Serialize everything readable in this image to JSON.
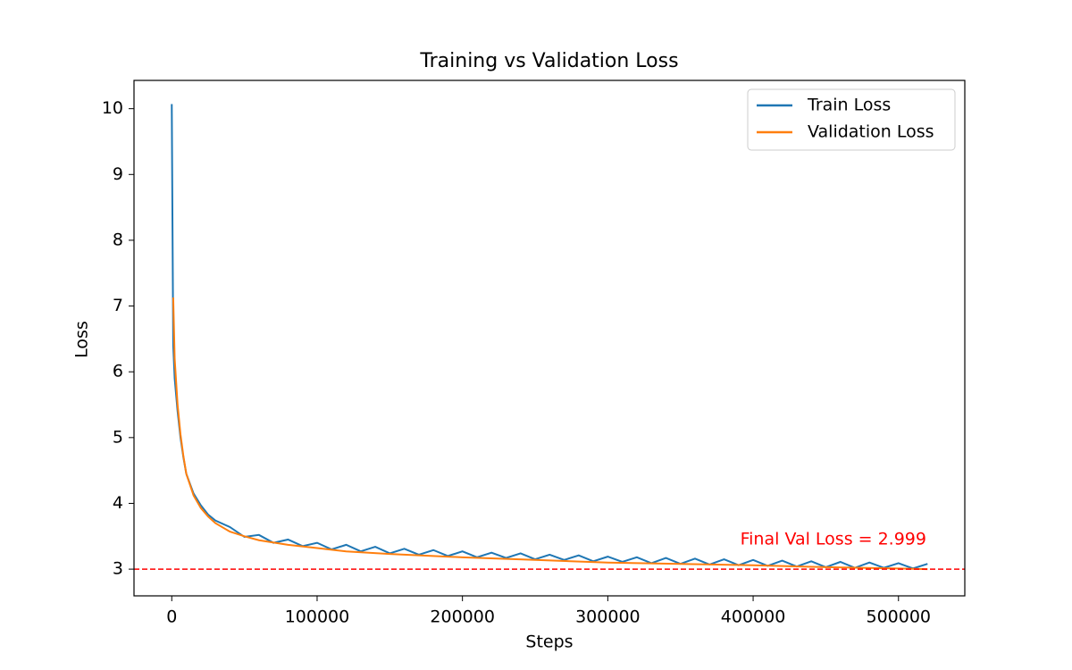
{
  "chart_data": {
    "type": "line",
    "title": "Training vs Validation Loss",
    "xlabel": "Steps",
    "ylabel": "Loss",
    "xlim": [
      -25980,
      545630
    ],
    "ylim": [
      2.594,
      10.43
    ],
    "xticks": [
      0,
      100000,
      200000,
      300000,
      400000,
      500000
    ],
    "yticks": [
      3,
      4,
      5,
      6,
      7,
      8,
      9,
      10
    ],
    "legend": "upper right",
    "grid": false,
    "series": [
      {
        "name": "Train Loss",
        "color": "#1f77b4",
        "x": [
          0,
          1000,
          2000,
          4000,
          6000,
          8000,
          10000,
          15000,
          20000,
          25000,
          30000,
          40000,
          50000,
          60000,
          70000,
          80000,
          90000,
          100000,
          110000,
          120000,
          130000,
          140000,
          150000,
          160000,
          170000,
          180000,
          190000,
          200000,
          210000,
          220000,
          230000,
          240000,
          250000,
          260000,
          270000,
          280000,
          290000,
          300000,
          310000,
          320000,
          330000,
          340000,
          350000,
          360000,
          370000,
          380000,
          390000,
          400000,
          410000,
          420000,
          430000,
          440000,
          450000,
          460000,
          470000,
          480000,
          490000,
          500000,
          510000,
          520000
        ],
        "values": [
          10.07,
          6.4,
          5.9,
          5.4,
          5.0,
          4.7,
          4.45,
          4.15,
          3.97,
          3.83,
          3.74,
          3.64,
          3.49,
          3.52,
          3.4,
          3.45,
          3.35,
          3.4,
          3.3,
          3.37,
          3.27,
          3.34,
          3.24,
          3.31,
          3.22,
          3.29,
          3.2,
          3.27,
          3.18,
          3.25,
          3.17,
          3.24,
          3.15,
          3.22,
          3.14,
          3.21,
          3.12,
          3.19,
          3.11,
          3.18,
          3.09,
          3.17,
          3.08,
          3.16,
          3.07,
          3.15,
          3.06,
          3.14,
          3.05,
          3.13,
          3.04,
          3.12,
          3.03,
          3.11,
          3.02,
          3.1,
          3.02,
          3.09,
          3.01,
          3.08
        ]
      },
      {
        "name": "Validation Loss",
        "color": "#ff7f0e",
        "x": [
          1000,
          2000,
          4000,
          6000,
          8000,
          10000,
          15000,
          20000,
          25000,
          30000,
          40000,
          50000,
          60000,
          80000,
          100000,
          120000,
          150000,
          200000,
          250000,
          300000,
          350000,
          400000,
          450000,
          500000,
          520000
        ],
        "values": [
          7.13,
          6.2,
          5.5,
          5.05,
          4.72,
          4.45,
          4.12,
          3.93,
          3.8,
          3.7,
          3.57,
          3.5,
          3.44,
          3.37,
          3.32,
          3.27,
          3.23,
          3.18,
          3.14,
          3.1,
          3.08,
          3.06,
          3.03,
          3.01,
          2.999
        ]
      }
    ],
    "hline": {
      "value": 2.999,
      "color": "#ff0000",
      "label": "Final Val Loss = 2.999"
    }
  }
}
